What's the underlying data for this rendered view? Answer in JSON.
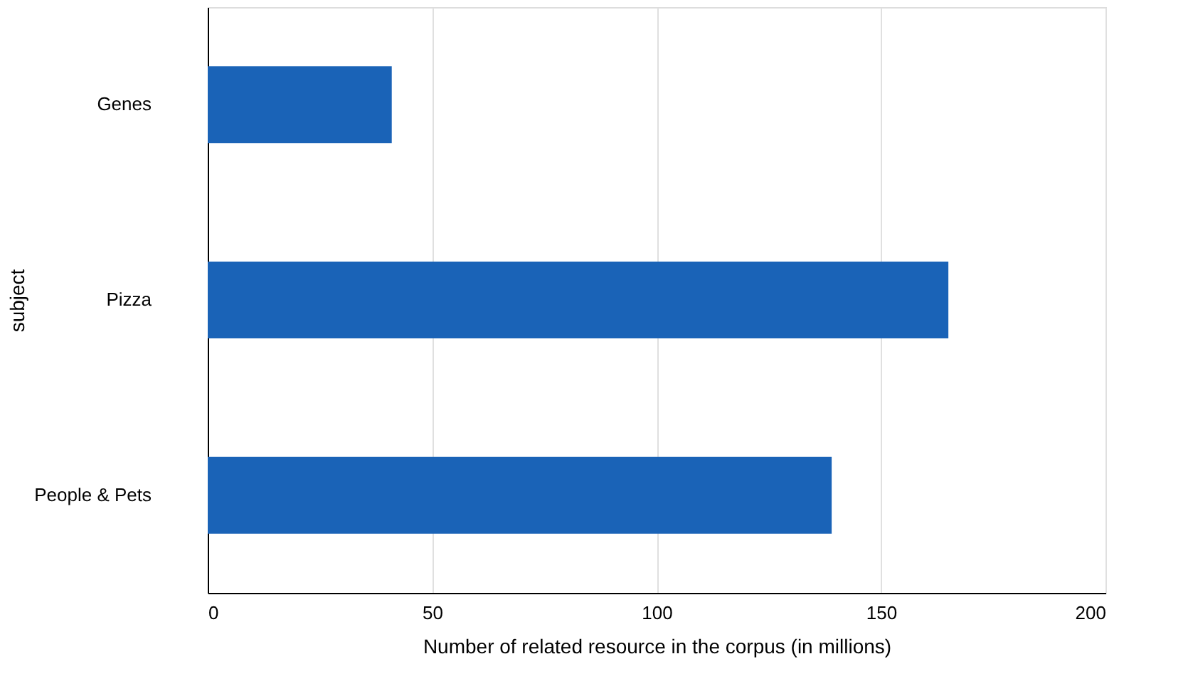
{
  "chart_data": {
    "type": "bar",
    "orientation": "horizontal",
    "categories": [
      "Genes",
      "Pizza",
      "People & Pets"
    ],
    "values": [
      41,
      165,
      139
    ],
    "color": "#1a63b7",
    "xlabel": "Number of related resource in the corpus (in millions)",
    "ylabel": "subject",
    "xlim": [
      0,
      200
    ],
    "xticks": [
      0,
      50,
      100,
      150,
      200
    ],
    "grid": "x"
  }
}
